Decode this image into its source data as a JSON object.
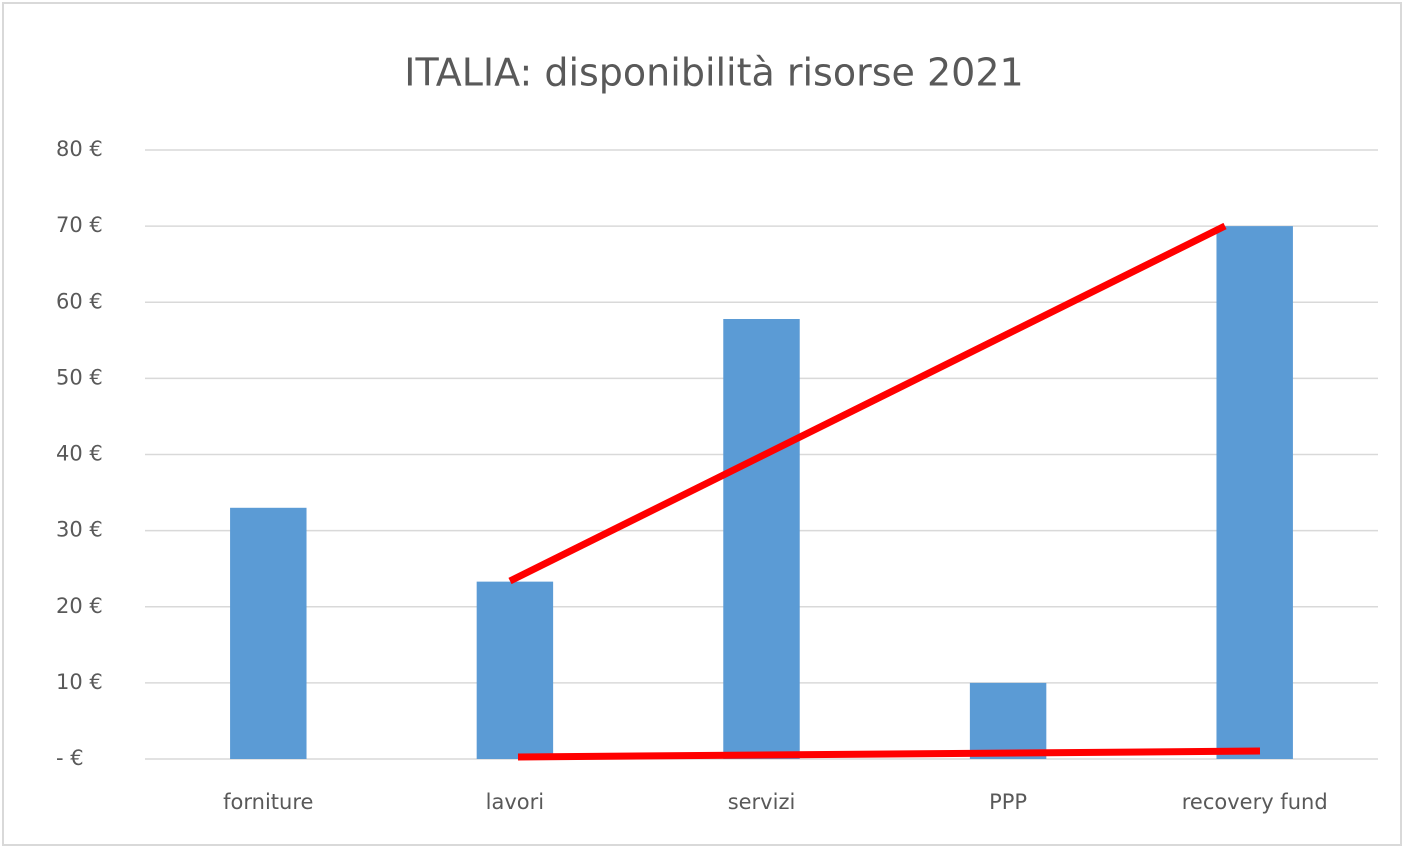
{
  "chart_data": {
    "type": "bar",
    "title": "ITALIA: disponibilità risorse 2021",
    "categories": [
      "forniture",
      "lavori",
      "servizi",
      "PPP",
      "recovery fund"
    ],
    "values": [
      33,
      23.3,
      57.8,
      10,
      70
    ],
    "color": "#5b9bd5",
    "ylim": [
      0,
      80
    ],
    "yticks": [
      {
        "value": 0,
        "label": "-  €"
      },
      {
        "value": 10,
        "label": "10 €"
      },
      {
        "value": 20,
        "label": "20 €"
      },
      {
        "value": 30,
        "label": "30 €"
      },
      {
        "value": 40,
        "label": "40 €"
      },
      {
        "value": 50,
        "label": "50 €"
      },
      {
        "value": 60,
        "label": "60 €"
      },
      {
        "value": 70,
        "label": "70 €"
      },
      {
        "value": 80,
        "label": "80 €"
      }
    ],
    "grid": true
  }
}
